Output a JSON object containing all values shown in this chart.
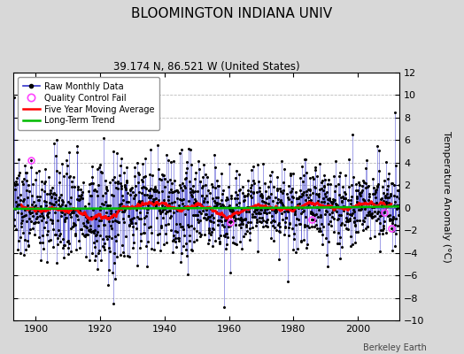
{
  "title": "BLOOMINGTON INDIANA UNIV",
  "subtitle": "39.174 N, 86.521 W (United States)",
  "ylabel": "Temperature Anomaly (°C)",
  "credit": "Berkeley Earth",
  "xlim": [
    1893,
    2013
  ],
  "ylim": [
    -10,
    12
  ],
  "yticks": [
    -10,
    -8,
    -6,
    -4,
    -2,
    0,
    2,
    4,
    6,
    8,
    10,
    12
  ],
  "xticks": [
    1900,
    1920,
    1940,
    1960,
    1980,
    2000
  ],
  "fig_bg_color": "#d8d8d8",
  "plot_bg_color": "#ffffff",
  "raw_line_color": "#3333cc",
  "raw_marker_color": "#000000",
  "moving_avg_color": "#ff0000",
  "trend_color": "#00bb00",
  "qc_color": "#ff44ff",
  "seed": 137,
  "start_year": 1893,
  "end_year": 2012
}
